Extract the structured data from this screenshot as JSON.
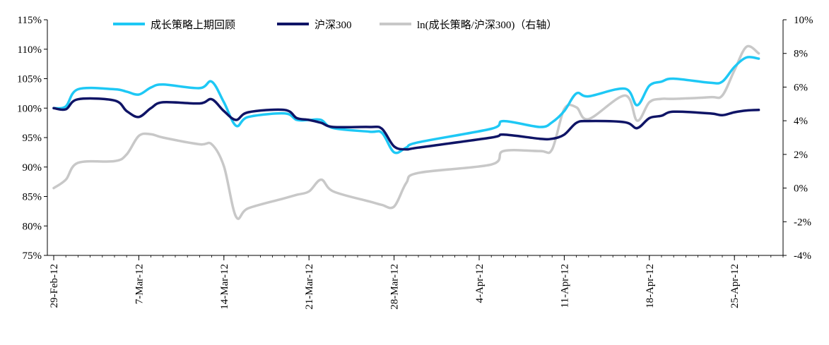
{
  "chart_data": {
    "type": "line",
    "title": "",
    "xlabel": "",
    "ylabel": "",
    "x_tick_labels": [
      "29-Feb-12",
      "7-Mar-12",
      "14-Mar-12",
      "21-Mar-12",
      "28-Mar-12",
      "4-Apr-12",
      "11-Apr-12",
      "18-Apr-12",
      "25-Apr-12"
    ],
    "x_tick_dates": [
      "2012-02-29",
      "2012-03-07",
      "2012-03-14",
      "2012-03-21",
      "2012-03-28",
      "2012-04-04",
      "2012-04-11",
      "2012-04-18",
      "2012-04-25"
    ],
    "x_range": [
      "2012-02-29",
      "2012-04-29"
    ],
    "y_left": {
      "min": 75,
      "max": 115,
      "step": 5,
      "tick_labels": [
        "75%",
        "80%",
        "85%",
        "90%",
        "95%",
        "100%",
        "105%",
        "110%",
        "115%"
      ]
    },
    "y_right": {
      "min": -4,
      "max": 10,
      "step": 2,
      "tick_labels": [
        "-4%",
        "-2%",
        "0%",
        "2%",
        "4%",
        "6%",
        "8%",
        "10%"
      ]
    },
    "grid": false,
    "legend_position": "top",
    "series": [
      {
        "name": "成长策略上期回顾",
        "axis": "left",
        "color": "#1ec8f5",
        "points": [
          [
            "2012-02-29",
            100.0
          ],
          [
            "2012-03-01",
            100.3
          ],
          [
            "2012-03-02",
            103.2
          ],
          [
            "2012-03-05",
            103.2
          ],
          [
            "2012-03-06",
            102.8
          ],
          [
            "2012-03-07",
            102.3
          ],
          [
            "2012-03-08",
            103.5
          ],
          [
            "2012-03-09",
            104.0
          ],
          [
            "2012-03-12",
            103.4
          ],
          [
            "2012-03-13",
            104.5
          ],
          [
            "2012-03-14",
            101.0
          ],
          [
            "2012-03-15",
            97.0
          ],
          [
            "2012-03-16",
            98.5
          ],
          [
            "2012-03-19",
            99.1
          ],
          [
            "2012-03-20",
            98.0
          ],
          [
            "2012-03-21",
            98.0
          ],
          [
            "2012-03-22",
            98.0
          ],
          [
            "2012-03-23",
            96.6
          ],
          [
            "2012-03-26",
            96.0
          ],
          [
            "2012-03-27",
            95.8
          ],
          [
            "2012-03-28",
            92.5
          ],
          [
            "2012-03-29",
            93.3
          ],
          [
            "2012-03-30",
            94.2
          ],
          [
            "2012-04-05",
            96.5
          ],
          [
            "2012-04-06",
            97.8
          ],
          [
            "2012-04-09",
            96.8
          ],
          [
            "2012-04-10",
            97.6
          ],
          [
            "2012-04-11",
            99.5
          ],
          [
            "2012-04-12",
            102.5
          ],
          [
            "2012-04-13",
            102.0
          ],
          [
            "2012-04-16",
            103.3
          ],
          [
            "2012-04-17",
            100.5
          ],
          [
            "2012-04-18",
            103.8
          ],
          [
            "2012-04-19",
            104.5
          ],
          [
            "2012-04-20",
            105.0
          ],
          [
            "2012-04-23",
            104.3
          ],
          [
            "2012-04-24",
            104.5
          ],
          [
            "2012-04-25",
            107.0
          ],
          [
            "2012-04-26",
            108.6
          ],
          [
            "2012-04-27",
            108.4
          ]
        ]
      },
      {
        "name": "沪深300",
        "axis": "left",
        "color": "#0f1466",
        "points": [
          [
            "2012-02-29",
            100.0
          ],
          [
            "2012-03-01",
            99.8
          ],
          [
            "2012-03-02",
            101.5
          ],
          [
            "2012-03-05",
            101.3
          ],
          [
            "2012-03-06",
            99.5
          ],
          [
            "2012-03-07",
            98.5
          ],
          [
            "2012-03-08",
            100.0
          ],
          [
            "2012-03-09",
            101.0
          ],
          [
            "2012-03-12",
            100.8
          ],
          [
            "2012-03-13",
            101.5
          ],
          [
            "2012-03-14",
            99.5
          ],
          [
            "2012-03-15",
            98.0
          ],
          [
            "2012-03-16",
            99.3
          ],
          [
            "2012-03-19",
            99.7
          ],
          [
            "2012-03-20",
            98.3
          ],
          [
            "2012-03-21",
            98.0
          ],
          [
            "2012-03-22",
            97.5
          ],
          [
            "2012-03-23",
            96.8
          ],
          [
            "2012-03-26",
            96.8
          ],
          [
            "2012-03-27",
            96.5
          ],
          [
            "2012-03-28",
            93.5
          ],
          [
            "2012-03-29",
            93.0
          ],
          [
            "2012-03-30",
            93.3
          ],
          [
            "2012-04-05",
            95.0
          ],
          [
            "2012-04-06",
            95.5
          ],
          [
            "2012-04-09",
            94.8
          ],
          [
            "2012-04-10",
            94.8
          ],
          [
            "2012-04-11",
            95.5
          ],
          [
            "2012-04-12",
            97.5
          ],
          [
            "2012-04-13",
            97.8
          ],
          [
            "2012-04-16",
            97.6
          ],
          [
            "2012-04-17",
            96.6
          ],
          [
            "2012-04-18",
            98.3
          ],
          [
            "2012-04-19",
            98.7
          ],
          [
            "2012-04-20",
            99.4
          ],
          [
            "2012-04-23",
            99.1
          ],
          [
            "2012-04-24",
            98.8
          ],
          [
            "2012-04-25",
            99.3
          ],
          [
            "2012-04-26",
            99.6
          ],
          [
            "2012-04-27",
            99.7
          ]
        ]
      },
      {
        "name": "ln(成长策略/沪深300)（右轴）",
        "axis": "right",
        "color": "#c8c8c8",
        "points": [
          [
            "2012-02-29",
            0.0
          ],
          [
            "2012-03-01",
            0.5
          ],
          [
            "2012-03-02",
            1.5
          ],
          [
            "2012-03-05",
            1.6
          ],
          [
            "2012-03-06",
            2.0
          ],
          [
            "2012-03-07",
            3.1
          ],
          [
            "2012-03-08",
            3.2
          ],
          [
            "2012-03-09",
            3.0
          ],
          [
            "2012-03-12",
            2.6
          ],
          [
            "2012-03-13",
            2.6
          ],
          [
            "2012-03-14",
            1.3
          ],
          [
            "2012-03-15",
            -1.7
          ],
          [
            "2012-03-16",
            -1.2
          ],
          [
            "2012-03-19",
            -0.6
          ],
          [
            "2012-03-20",
            -0.4
          ],
          [
            "2012-03-21",
            -0.2
          ],
          [
            "2012-03-22",
            0.5
          ],
          [
            "2012-03-23",
            -0.2
          ],
          [
            "2012-03-26",
            -0.8
          ],
          [
            "2012-03-27",
            -1.0
          ],
          [
            "2012-03-28",
            -1.1
          ],
          [
            "2012-03-29",
            0.3
          ],
          [
            "2012-03-30",
            0.9
          ],
          [
            "2012-04-05",
            1.4
          ],
          [
            "2012-04-06",
            2.2
          ],
          [
            "2012-04-09",
            2.2
          ],
          [
            "2012-04-10",
            2.3
          ],
          [
            "2012-04-11",
            4.7
          ],
          [
            "2012-04-12",
            4.8
          ],
          [
            "2012-04-13",
            4.1
          ],
          [
            "2012-04-16",
            5.5
          ],
          [
            "2012-04-17",
            4.0
          ],
          [
            "2012-04-18",
            5.1
          ],
          [
            "2012-04-19",
            5.3
          ],
          [
            "2012-04-20",
            5.3
          ],
          [
            "2012-04-23",
            5.4
          ],
          [
            "2012-04-24",
            5.5
          ],
          [
            "2012-04-25",
            7.0
          ],
          [
            "2012-04-26",
            8.4
          ],
          [
            "2012-04-27",
            8.0
          ]
        ]
      }
    ]
  }
}
